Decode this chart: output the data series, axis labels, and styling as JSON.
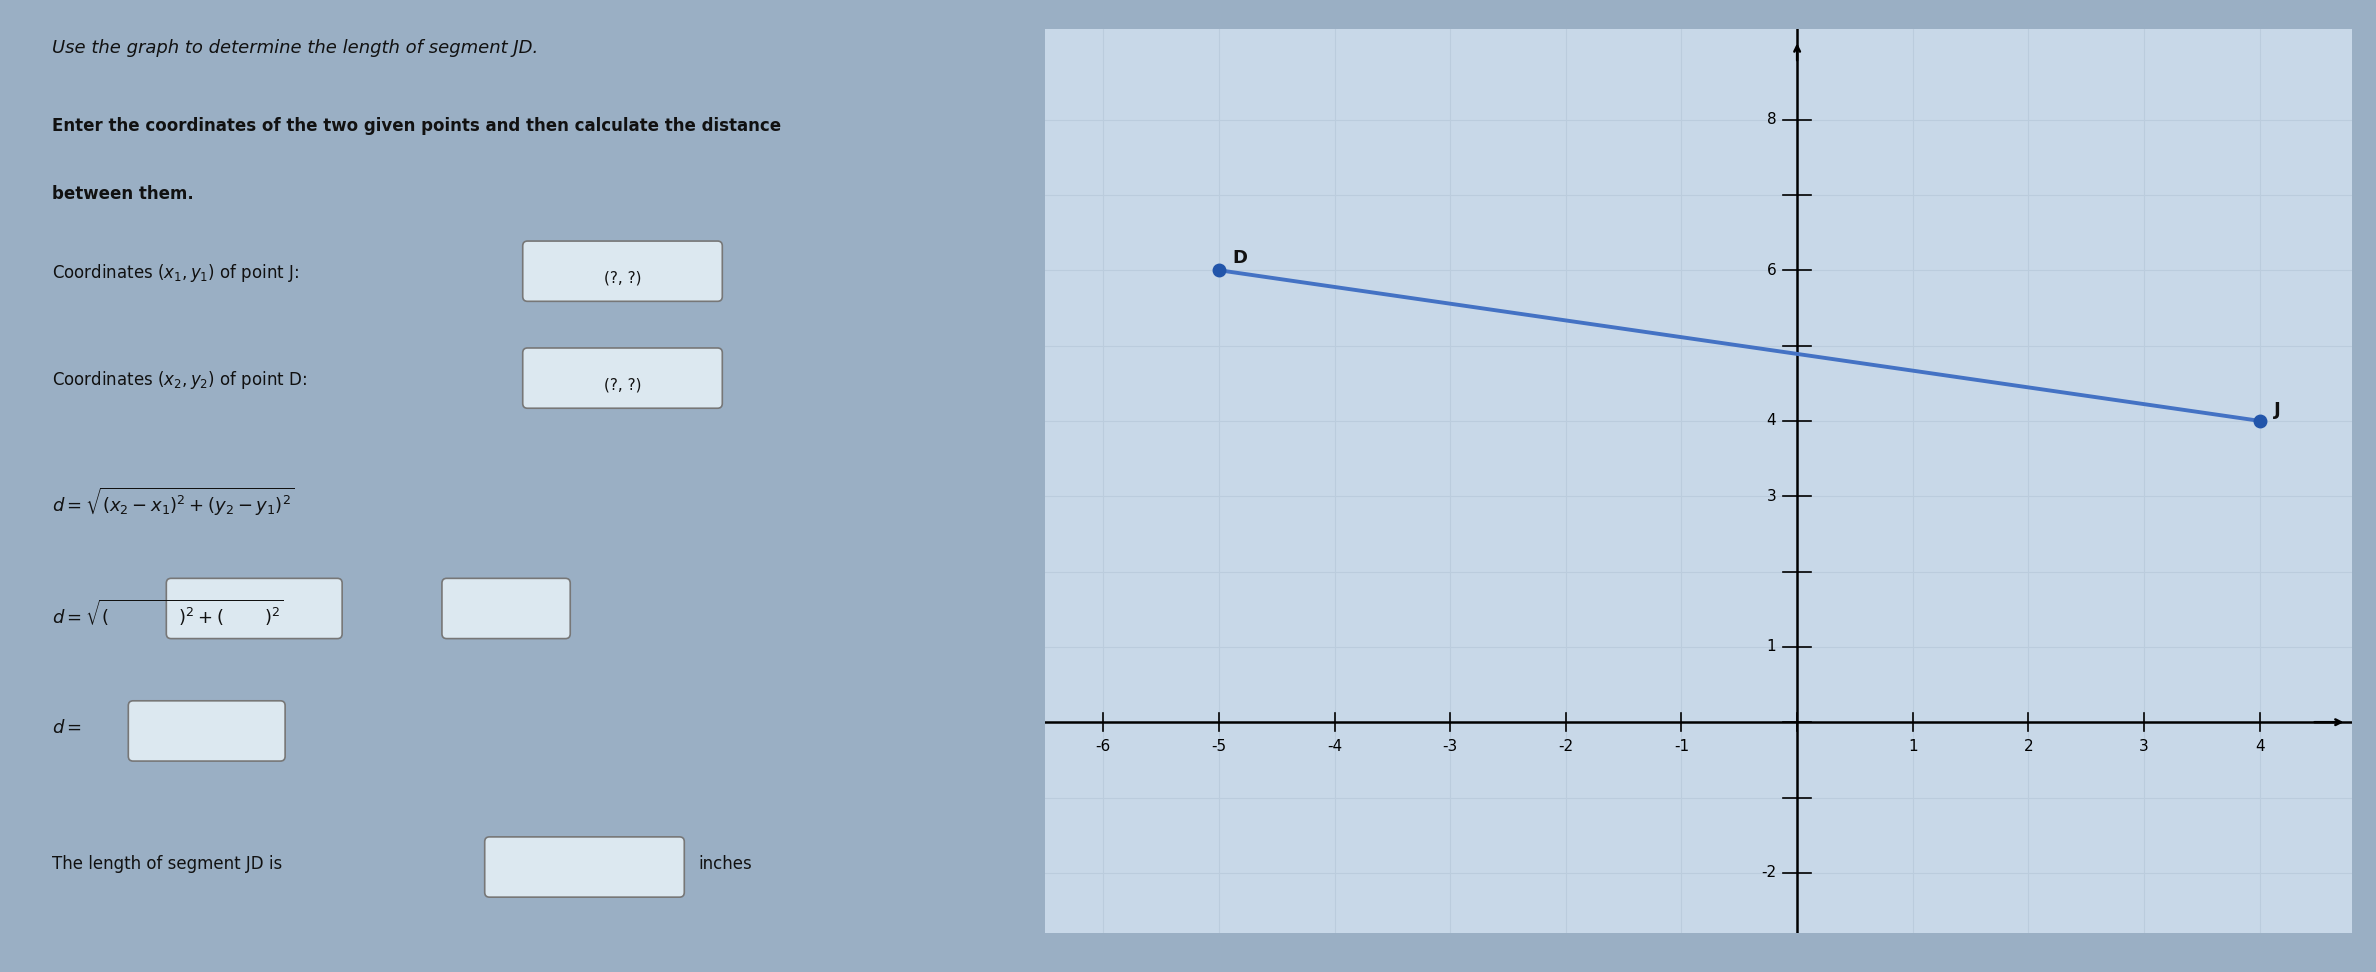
{
  "title": "Use the graph to determine the length of segment JD.",
  "intro_line1": "Enter the coordinates of the two given points and then calculate the distance",
  "intro_line2": "between them.",
  "point_J": [
    4,
    4
  ],
  "point_D": [
    -5,
    6
  ],
  "line_color": "#4472C4",
  "point_color": "#2255AA",
  "xlim": [
    -6.5,
    4.8
  ],
  "ylim": [
    -2.8,
    9.2
  ],
  "xticks": [
    -6,
    -5,
    -4,
    -3,
    -2,
    -1,
    1,
    2,
    3,
    4
  ],
  "yticks": [
    -2,
    1,
    3,
    4,
    6,
    8
  ],
  "grid_color": "#bbccdd",
  "background_color": "#9aafc4",
  "graph_bg": "#c8d8e8",
  "text_color": "#111111",
  "label_J": "J",
  "label_D": "D",
  "coord_label_J": "(?, ?)",
  "coord_label_D": "(?, ?)"
}
